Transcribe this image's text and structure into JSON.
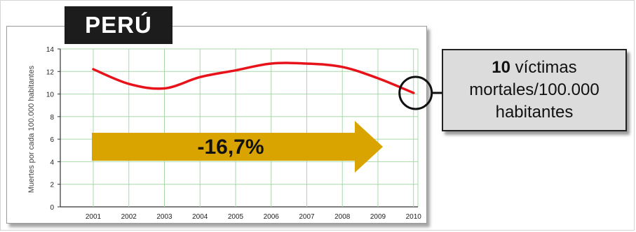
{
  "title": "PERÚ",
  "chart_data": {
    "type": "line",
    "ylabel": "Muertes por cada 100.000 habitantes",
    "xlabel": "",
    "x": [
      "2001",
      "2002",
      "2003",
      "2004",
      "2005",
      "2006",
      "2007",
      "2008",
      "2009",
      "2010"
    ],
    "ylim": [
      0,
      14
    ],
    "yticks": [
      0,
      2,
      4,
      6,
      8,
      10,
      12,
      14
    ],
    "grid": true,
    "series": [
      {
        "values": [
          12.2,
          10.9,
          10.5,
          11.5,
          12.1,
          12.7,
          12.7,
          12.4,
          11.4,
          10.1
        ],
        "color": "#e8121b"
      }
    ],
    "arrow_label": "-16,7%"
  },
  "callout": {
    "number": "10",
    "line1_rest": " víctimas",
    "line2": "mortales/100.000",
    "line3": "habitantes"
  },
  "colors": {
    "grid": "#a8d8a8",
    "line": "#e8121b",
    "arrow": "#d9a400",
    "title_bg": "#1c1c1c",
    "callout_bg": "#dcdcdc"
  }
}
